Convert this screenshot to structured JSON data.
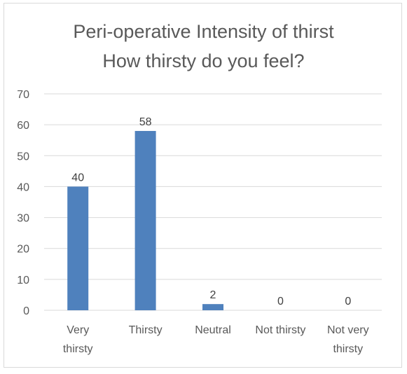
{
  "chart_data": {
    "type": "bar",
    "title_lines": [
      "Peri-operative Intensity of thirst",
      "How thirsty do you feel?"
    ],
    "categories": [
      "Very thirsty",
      "Thirsty",
      "Neutral",
      "Not thirsty",
      "Not very thirsty"
    ],
    "category_lines": [
      [
        "Very",
        "thirsty"
      ],
      [
        "Thirsty"
      ],
      [
        "Neutral"
      ],
      [
        "Not thirsty"
      ],
      [
        "Not very",
        "thirsty"
      ]
    ],
    "values": [
      40,
      58,
      2,
      0,
      0
    ],
    "data_labels": [
      "40",
      "58",
      "2",
      "0",
      "0"
    ],
    "ylim": [
      0,
      70
    ],
    "yticks": [
      0,
      10,
      20,
      30,
      40,
      50,
      60,
      70
    ],
    "grid": true,
    "legend": "none",
    "bar_color": "#4f81bd",
    "grid_color": "#d9d9d9"
  }
}
